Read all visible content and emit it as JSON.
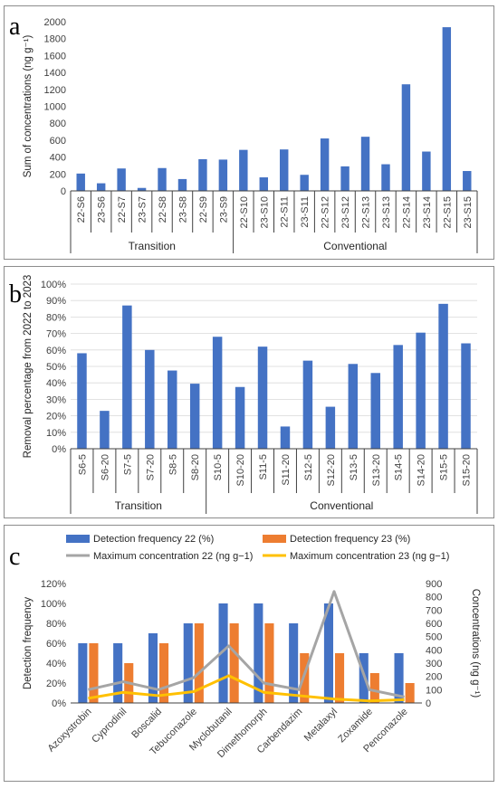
{
  "panels": {
    "a": {
      "letter": "a"
    },
    "b": {
      "letter": "b"
    },
    "c": {
      "letter": "c"
    }
  },
  "colors": {
    "blue": "#4472c4",
    "orange": "#ed7d31",
    "gray": "#a5a5a5",
    "yellow": "#ffc000"
  },
  "chart_data": [
    {
      "type": "bar",
      "ylabel": "Sum of concentrations (ng g⁻¹)",
      "ylim": [
        0,
        2000
      ],
      "yticks": [
        "0",
        "200",
        "400",
        "600",
        "800",
        "1000",
        "1200",
        "1400",
        "1600",
        "1800",
        "2000"
      ],
      "categories": [
        "22-S6",
        "23-S6",
        "22-S7",
        "23-S7",
        "22-S8",
        "23-S8",
        "22-S9",
        "23-S9",
        "22-S10",
        "23-S10",
        "22-S11",
        "23-S11",
        "22-S12",
        "23-S12",
        "22-S13",
        "23-S13",
        "22-S14",
        "23-S14",
        "22-S15",
        "23-S15"
      ],
      "values": [
        205,
        90,
        265,
        35,
        270,
        140,
        375,
        370,
        485,
        160,
        490,
        190,
        620,
        290,
        640,
        315,
        1260,
        465,
        1935,
        235
      ],
      "groups": [
        {
          "label": "Transition",
          "count": 8
        },
        {
          "label": "Conventional",
          "count": 12
        }
      ],
      "grid": false
    },
    {
      "type": "bar",
      "ylabel": "Removal percentage from 2022 to 2023",
      "ylim": [
        0,
        100
      ],
      "yticks": [
        "0%",
        "10%",
        "20%",
        "30%",
        "40%",
        "50%",
        "60%",
        "70%",
        "80%",
        "90%",
        "100%"
      ],
      "categories": [
        "S6-5",
        "S6-20",
        "S7-5",
        "S7-20",
        "S8-5",
        "S8-20",
        "S10-5",
        "S10-20",
        "S11-5",
        "S11-20",
        "S12-5",
        "S12-20",
        "S13-5",
        "S13-20",
        "S14-5",
        "S14-20",
        "S15-5",
        "S15-20"
      ],
      "values": [
        58,
        23,
        87,
        60,
        47.5,
        39.5,
        68,
        37.5,
        62,
        13.5,
        53.5,
        25.5,
        51.5,
        46,
        63,
        70.5,
        88,
        64
      ],
      "groups": [
        {
          "label": "Transition",
          "count": 6
        },
        {
          "label": "Conventional",
          "count": 12
        }
      ],
      "grid": true
    },
    {
      "type": "bar",
      "ylabel": "Detection frequency",
      "ylabel_right": "Concentrations (ng g⁻¹)",
      "ylim": [
        0,
        120
      ],
      "ylim_right": [
        0,
        900
      ],
      "yticks": [
        "0%",
        "20%",
        "40%",
        "60%",
        "80%",
        "100%",
        "120%"
      ],
      "yticks_right": [
        "0",
        "100",
        "200",
        "300",
        "400",
        "500",
        "600",
        "700",
        "800",
        "900"
      ],
      "categories": [
        "Azoxystrobin",
        "Cyprodinil",
        "Boscalid",
        "Tebuconazole",
        "Myclobutanil",
        "Dimethomorph",
        "Carbendazim",
        "Metalaxyl",
        "Zoxamide",
        "Penconazole"
      ],
      "legend_position": "top",
      "series": [
        {
          "name": "Detection frequency 22 (%)",
          "kind": "bar",
          "axis": "left",
          "values": [
            60,
            60,
            70,
            80,
            100,
            100,
            80,
            100,
            50,
            50
          ]
        },
        {
          "name": "Detection frequency 23 (%)",
          "kind": "bar",
          "axis": "left",
          "values": [
            60,
            40,
            60,
            80,
            80,
            80,
            50,
            50,
            30,
            20
          ]
        },
        {
          "name": "Maximum concentration 22 (ng g−1)",
          "kind": "line",
          "axis": "right",
          "values": [
            100,
            160,
            100,
            190,
            430,
            150,
            100,
            840,
            100,
            45
          ]
        },
        {
          "name": "Maximum concentration 23 (ng g−1)",
          "kind": "line",
          "axis": "right",
          "values": [
            35,
            80,
            55,
            85,
            205,
            80,
            55,
            30,
            15,
            25
          ]
        }
      ]
    }
  ]
}
